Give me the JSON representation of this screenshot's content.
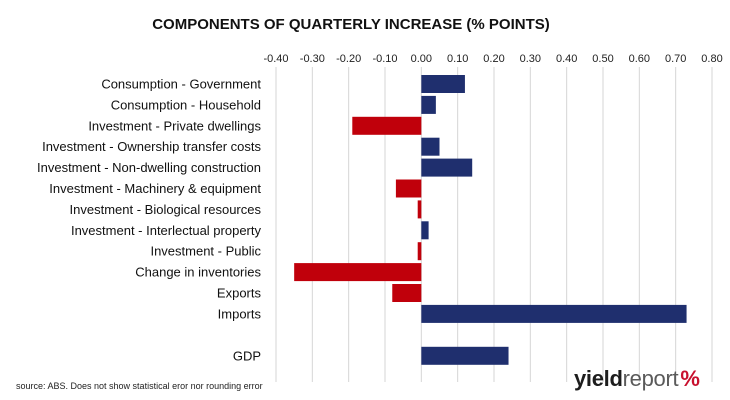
{
  "colors": {
    "positive": "#1f2f6e",
    "negative": "#c0000b",
    "grid": "#d6d6d6"
  },
  "logo": {
    "part1": "yield",
    "part2": "report",
    "part3": "%"
  },
  "source": "source: ABS. Does not show statistical eror nor rounding error",
  "chart_data": {
    "type": "bar",
    "orientation": "horizontal",
    "title": "COMPONENTS OF QUARTERLY INCREASE (% POINTS)",
    "xlim": [
      -0.4,
      0.8
    ],
    "x_ticks": [
      -0.4,
      -0.3,
      -0.2,
      -0.1,
      0.0,
      0.1,
      0.2,
      0.3,
      0.4,
      0.5,
      0.6,
      0.7,
      0.8
    ],
    "x_tick_labels": [
      "-0.40",
      "-0.30",
      "-0.20",
      "-0.10",
      "0.00",
      "0.10",
      "0.20",
      "0.30",
      "0.40",
      "0.50",
      "0.60",
      "0.70",
      "0.80"
    ],
    "x_axis_position": "top",
    "grid": true,
    "categories": [
      "Consumption - Government",
      "Consumption - Household",
      "Investment - Private dwellings",
      "Investment - Ownership transfer costs",
      "Investment - Non-dwelling construction",
      "Investment - Machinery & equipment",
      "Investment - Biological resources",
      "Investment - Interlectual property",
      "Investment - Public",
      "Change in inventories",
      "Exports",
      "Imports",
      "GDP"
    ],
    "values": [
      0.12,
      0.04,
      -0.19,
      0.05,
      0.14,
      -0.07,
      -0.01,
      0.02,
      -0.01,
      -0.35,
      -0.08,
      0.73,
      0.24
    ]
  }
}
